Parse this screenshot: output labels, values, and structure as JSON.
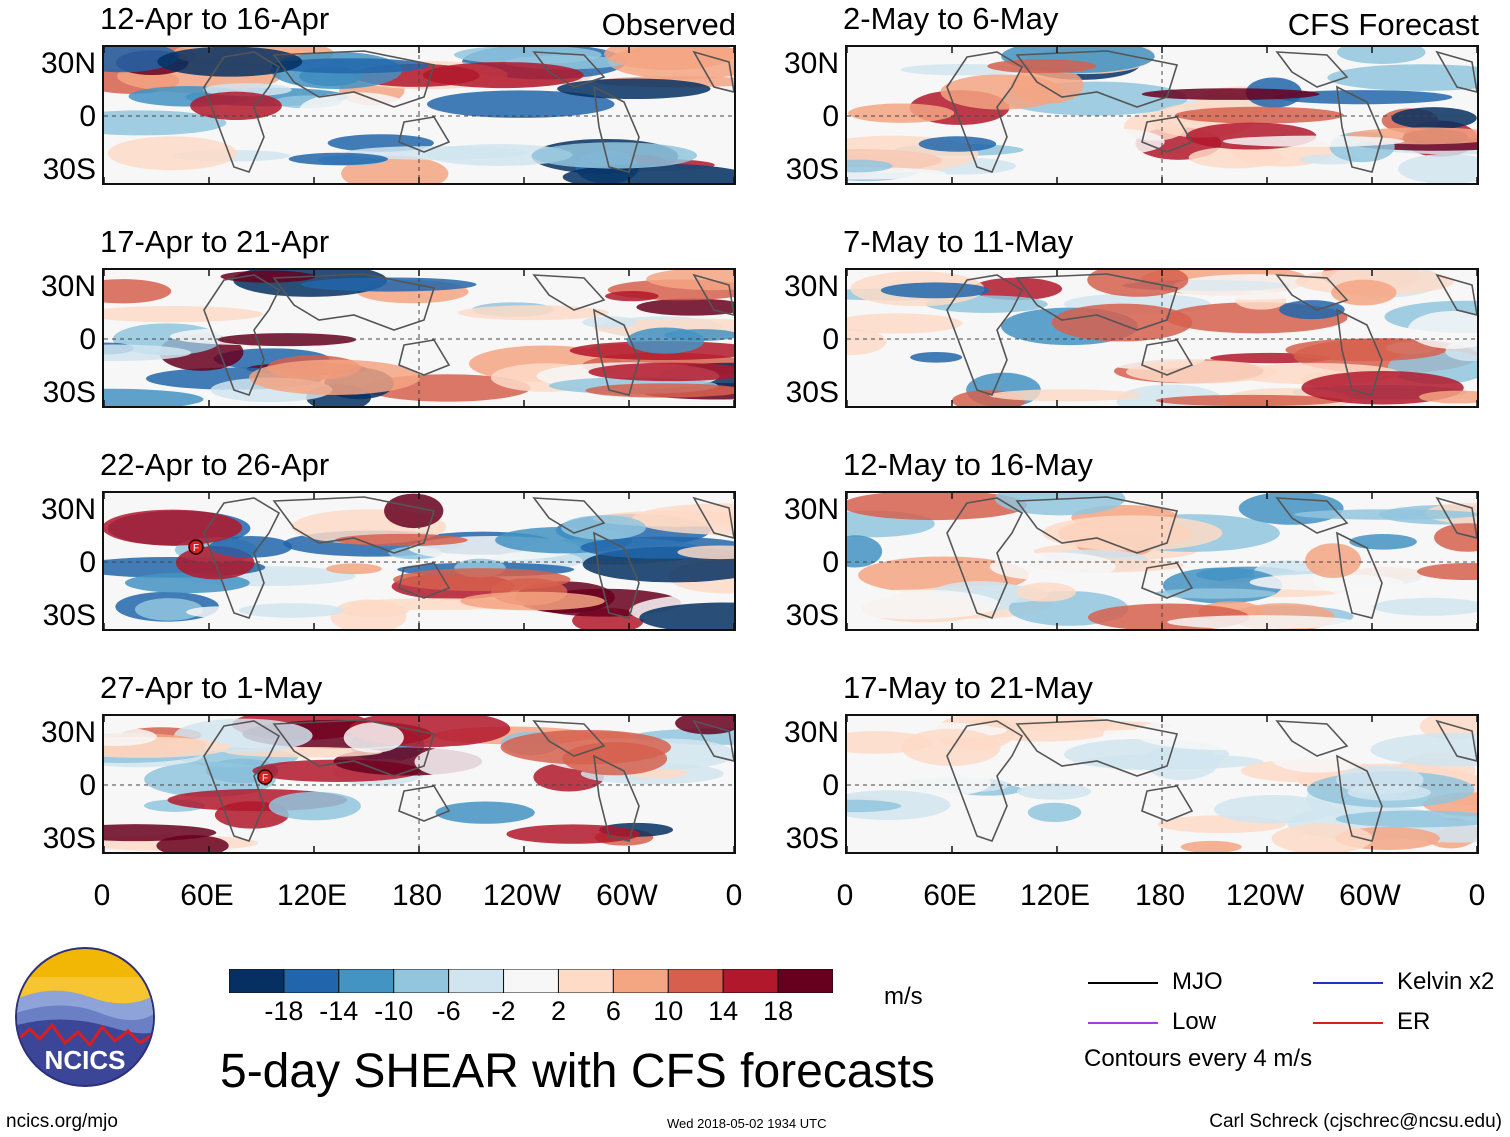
{
  "chart_data": {
    "type": "heatmap",
    "title": "5-day SHEAR with CFS forecasts",
    "units": "m/s",
    "columns": [
      {
        "label": "Observed",
        "panels": [
          "12-Apr to 16-Apr",
          "17-Apr to 21-Apr",
          "22-Apr to 26-Apr",
          "27-Apr to 1-May"
        ]
      },
      {
        "label": "CFS Forecast",
        "panels": [
          "2-May to 6-May",
          "7-May to 11-May",
          "12-May to 16-May",
          "17-May to 21-May"
        ]
      }
    ],
    "lat_ticks": [
      "30N",
      "0",
      "30S"
    ],
    "lon_ticks": [
      "0",
      "60E",
      "120E",
      "180",
      "120W",
      "60W",
      "0"
    ],
    "colorbar": {
      "labels": [
        "-18",
        "-14",
        "-10",
        "-6",
        "-2",
        "2",
        "6",
        "10",
        "14",
        "18"
      ],
      "colors": [
        "#053061",
        "#2166ac",
        "#4393c3",
        "#92c5de",
        "#d1e5f0",
        "#f7f7f7",
        "#fddbc7",
        "#f4a582",
        "#d6604d",
        "#b2182b",
        "#67001f"
      ]
    },
    "legend": [
      {
        "label": "MJO",
        "color": "#000000"
      },
      {
        "label": "Kelvin x2",
        "color": "#1f33cc"
      },
      {
        "label": "Low",
        "color": "#a040e0"
      },
      {
        "label": "ER",
        "color": "#d42020"
      }
    ],
    "contour_note": "Contours every 4 m/s"
  },
  "logo": {
    "text": "NCICS"
  },
  "footer": {
    "url": "ncics.org/mjo",
    "timestamp": "Wed 2018-05-02 1934 UTC",
    "author": "Carl Schreck (cjschrec@ncsu.edu)"
  },
  "cyclone_marker": "F"
}
